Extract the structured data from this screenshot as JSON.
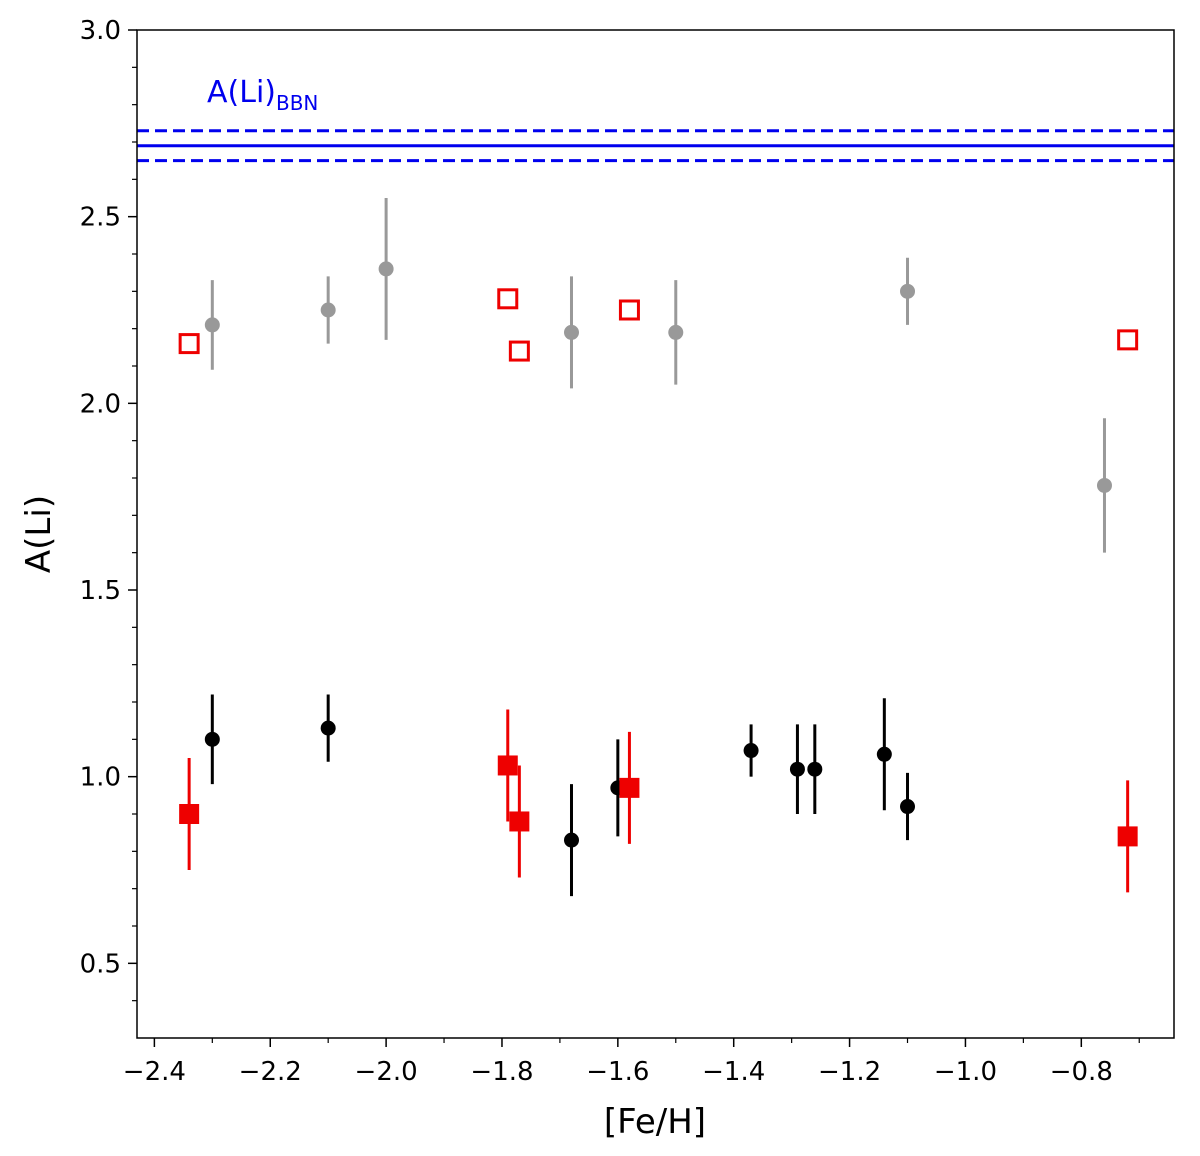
{
  "chart_data": {
    "type": "scatter",
    "xlabel": "[Fe/H]",
    "ylabel": "A(Li)",
    "xlim": [
      -2.43,
      -0.64
    ],
    "ylim": [
      0.3,
      3.0
    ],
    "x_ticks": [
      -2.4,
      -2.2,
      -2.0,
      -1.8,
      -1.6,
      -1.4,
      -1.2,
      -1.0,
      -0.8
    ],
    "x_tick_labels": [
      "−2.4",
      "−2.2",
      "−2.0",
      "−1.8",
      "−1.6",
      "−1.4",
      "−1.2",
      "−1.0",
      "−0.8"
    ],
    "y_ticks": [
      0.5,
      1.0,
      1.5,
      2.0,
      2.5,
      3.0
    ],
    "y_tick_labels": [
      "0.5",
      "1.0",
      "1.5",
      "2.0",
      "2.5",
      "3.0"
    ],
    "grid": false,
    "bbn": {
      "label_main": "A(Li)",
      "label_sub": "BBN",
      "value": 2.69,
      "lower": 2.65,
      "upper": 2.73,
      "color": "#0000ee"
    },
    "series": [
      {
        "marker": "circle",
        "color": "#999999",
        "points": [
          {
            "x": -2.3,
            "y": 2.21,
            "err": 0.12
          },
          {
            "x": -2.1,
            "y": 2.25,
            "err": 0.09
          },
          {
            "x": -2.0,
            "y": 2.36,
            "err": 0.19
          },
          {
            "x": -1.68,
            "y": 2.19,
            "err": 0.15
          },
          {
            "x": -1.5,
            "y": 2.19,
            "err": 0.14
          },
          {
            "x": -1.1,
            "y": 2.3,
            "err": 0.09
          },
          {
            "x": -0.76,
            "y": 1.78,
            "err": 0.18
          }
        ]
      },
      {
        "marker": "open-square",
        "color": "#ee0000",
        "points": [
          {
            "x": -2.34,
            "y": 2.16
          },
          {
            "x": -1.79,
            "y": 2.28
          },
          {
            "x": -1.77,
            "y": 2.14
          },
          {
            "x": -1.58,
            "y": 2.25
          },
          {
            "x": -0.72,
            "y": 2.17
          }
        ]
      },
      {
        "marker": "circle",
        "color": "#000000",
        "points": [
          {
            "x": -2.3,
            "y": 1.1,
            "err": 0.12
          },
          {
            "x": -2.1,
            "y": 1.13,
            "err": 0.09
          },
          {
            "x": -1.68,
            "y": 0.83,
            "err": 0.15
          },
          {
            "x": -1.6,
            "y": 0.97,
            "err": 0.13
          },
          {
            "x": -1.37,
            "y": 1.07,
            "err": 0.07
          },
          {
            "x": -1.29,
            "y": 1.02,
            "err": 0.12
          },
          {
            "x": -1.26,
            "y": 1.02,
            "err": 0.12
          },
          {
            "x": -1.14,
            "y": 1.06,
            "err": 0.15
          },
          {
            "x": -1.1,
            "y": 0.92,
            "err": 0.09
          }
        ]
      },
      {
        "marker": "filled-square",
        "color": "#ee0000",
        "points": [
          {
            "x": -2.34,
            "y": 0.9,
            "err": 0.15
          },
          {
            "x": -1.79,
            "y": 1.03,
            "err": 0.15
          },
          {
            "x": -1.77,
            "y": 0.88,
            "err": 0.15
          },
          {
            "x": -1.58,
            "y": 0.97,
            "err": 0.15
          },
          {
            "x": -0.72,
            "y": 0.84,
            "err": 0.15
          }
        ]
      }
    ]
  }
}
